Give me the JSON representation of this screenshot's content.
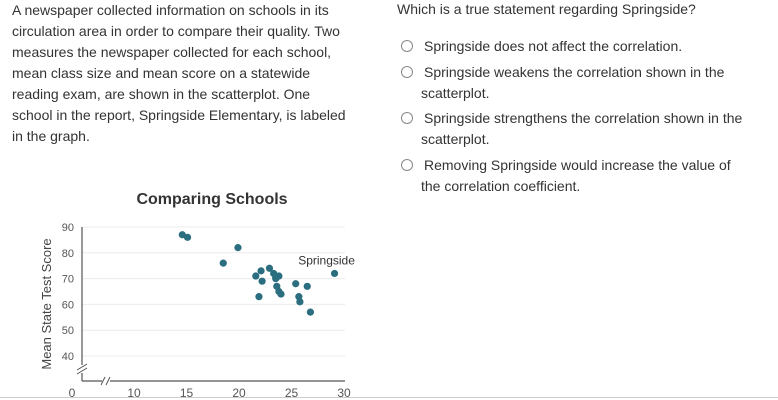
{
  "passage": [
    "A newspaper collected information on schools in its",
    "circulation area in order to compare their quality. Two",
    "measures the newspaper collected for each school,",
    "mean class size and mean score on a statewide",
    "reading exam, are shown in the scatterplot. One",
    "school in the report, Springside Elementary, is labeled",
    "in the graph."
  ],
  "question": "Which is a true statement regarding Springside?",
  "options": [
    {
      "lines": [
        "Springside does not affect the correlation."
      ]
    },
    {
      "lines": [
        "Springside weakens the correlation shown in the",
        "scatterplot."
      ]
    },
    {
      "lines": [
        "Springside strengthens the correlation shown in the",
        "scatterplot."
      ]
    },
    {
      "lines": [
        "Removing Springside would increase the value of",
        "the correlation coefficient."
      ]
    }
  ],
  "chart_data": {
    "type": "scatter",
    "title": "Comparing Schools",
    "xlabel": "",
    "ylabel": "Mean State Test Score",
    "xlim": [
      0,
      30
    ],
    "ylim": [
      0,
      90
    ],
    "x_ticks": [
      "0",
      "10",
      "15",
      "20",
      "25",
      "30"
    ],
    "y_ticks": [
      "40",
      "50",
      "60",
      "70",
      "80",
      "90"
    ],
    "axis_breaks": true,
    "grid": true,
    "color": "#2a6e7f",
    "points": [
      {
        "x": 14.6,
        "y": 87
      },
      {
        "x": 15.1,
        "y": 86
      },
      {
        "x": 18.5,
        "y": 76
      },
      {
        "x": 19.9,
        "y": 82
      },
      {
        "x": 21.6,
        "y": 71
      },
      {
        "x": 22.1,
        "y": 73
      },
      {
        "x": 22.2,
        "y": 69
      },
      {
        "x": 21.9,
        "y": 63
      },
      {
        "x": 22.9,
        "y": 74
      },
      {
        "x": 23.3,
        "y": 72
      },
      {
        "x": 23.5,
        "y": 70.5
      },
      {
        "x": 23.8,
        "y": 71
      },
      {
        "x": 23.6,
        "y": 67
      },
      {
        "x": 23.8,
        "y": 65
      },
      {
        "x": 24.0,
        "y": 64
      },
      {
        "x": 23.5,
        "y": 70
      },
      {
        "x": 25.4,
        "y": 68
      },
      {
        "x": 26.5,
        "y": 67
      },
      {
        "x": 25.7,
        "y": 63
      },
      {
        "x": 25.8,
        "y": 61
      },
      {
        "x": 26.8,
        "y": 57
      },
      {
        "x": 29.1,
        "y": 72,
        "label": "Springside"
      }
    ]
  }
}
